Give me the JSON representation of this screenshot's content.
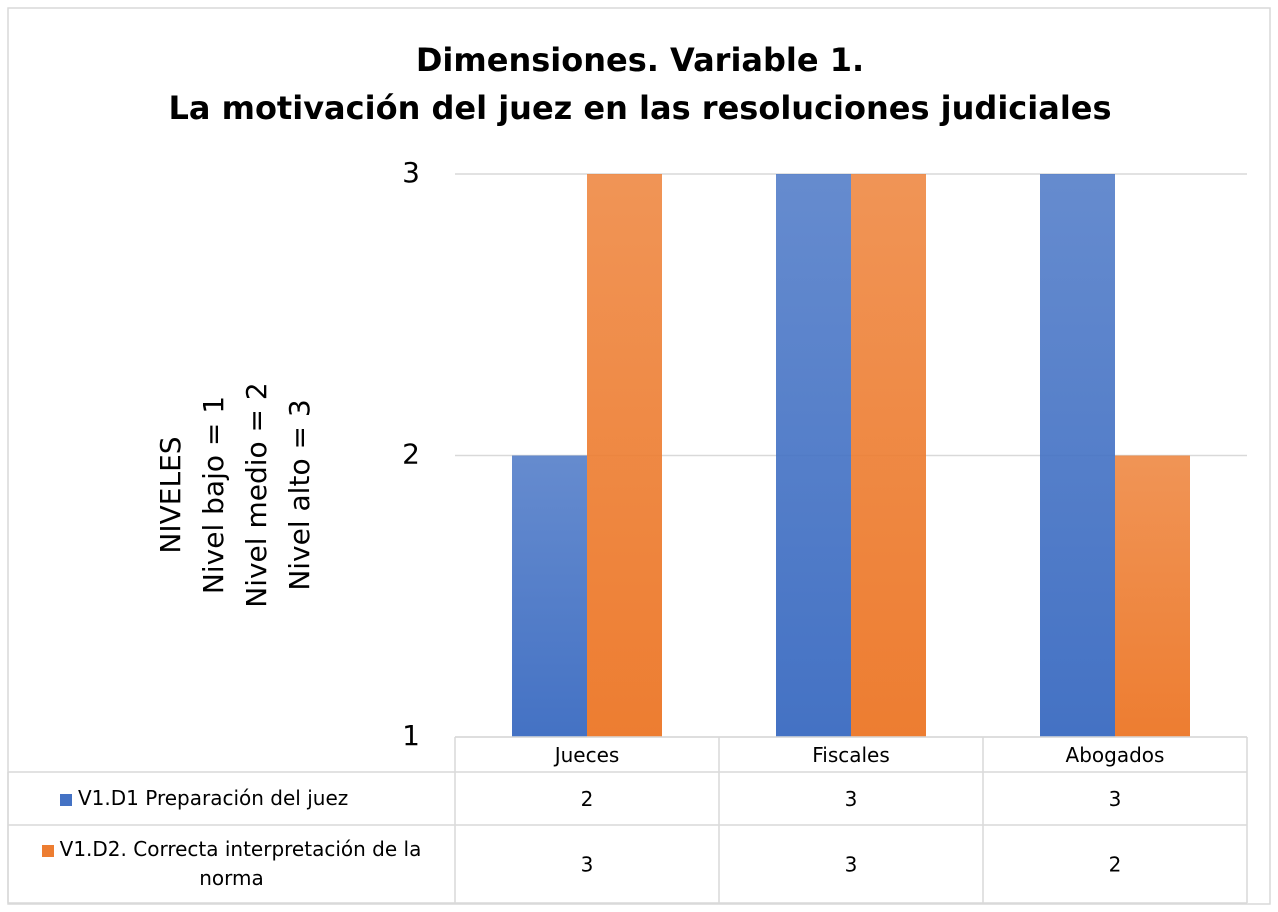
{
  "chart_data": {
    "type": "bar",
    "title": [
      "Dimensiones. Variable 1.",
      "La motivación del juez en las resoluciones judiciales"
    ],
    "ylabel": [
      "NIVELES",
      "Nivel bajo = 1",
      "Nivel medio = 2",
      "Nivel alto = 3"
    ],
    "categories": [
      "Jueces",
      "Fiscales",
      "Abogados"
    ],
    "series": [
      {
        "name": "V1.D1 Preparación del juez",
        "color": "#4472c4",
        "values": [
          2,
          3,
          3
        ]
      },
      {
        "name": "V1.D2. Correcta interpretación de la norma",
        "color": "#ed7d31",
        "values": [
          3,
          3,
          2
        ]
      }
    ],
    "ylim": [
      1,
      3
    ],
    "yticks": [
      1,
      2,
      3
    ],
    "grid": true,
    "legend": "table"
  }
}
